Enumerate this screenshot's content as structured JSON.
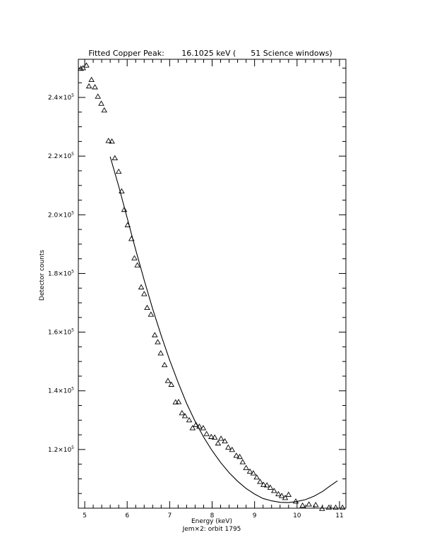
{
  "chart_data": {
    "type": "scatter",
    "title": "Fitted Copper Peak:       16.1025 keV (      51 Science windows)",
    "xlabel": "Energy (keV)",
    "ylabel": "Detector counts",
    "subtitle": "Jem×2: orbit 1795",
    "xlim": [
      4.85,
      11.15
    ],
    "ylim": [
      100000,
      253000
    ],
    "x_ticks": [
      {
        "value": 5,
        "label": "5"
      },
      {
        "value": 6,
        "label": "6"
      },
      {
        "value": 7,
        "label": "7"
      },
      {
        "value": 8,
        "label": "8"
      },
      {
        "value": 9,
        "label": "9"
      },
      {
        "value": 10,
        "label": "10"
      },
      {
        "value": 11,
        "label": "11"
      }
    ],
    "y_ticks": [
      {
        "value": 120000,
        "label": "1.2×10",
        "exp": "5"
      },
      {
        "value": 140000,
        "label": "1.4×10",
        "exp": "5"
      },
      {
        "value": 160000,
        "label": "1.6×10",
        "exp": "5"
      },
      {
        "value": 180000,
        "label": "1.8×10",
        "exp": "5"
      },
      {
        "value": 200000,
        "label": "2.0×10",
        "exp": "5"
      },
      {
        "value": 220000,
        "label": "2.2×10",
        "exp": "5"
      },
      {
        "value": 240000,
        "label": "2.4×10",
        "exp": "5"
      }
    ],
    "series": [
      {
        "marker": "triangle",
        "points": [
          [
            4.91,
            249800
          ],
          [
            4.96,
            250000
          ],
          [
            5.04,
            250900
          ],
          [
            5.1,
            243800
          ],
          [
            5.16,
            246000
          ],
          [
            5.24,
            243500
          ],
          [
            5.31,
            240300
          ],
          [
            5.39,
            237900
          ],
          [
            5.46,
            235600
          ],
          [
            5.56,
            225200
          ],
          [
            5.64,
            225000
          ],
          [
            5.71,
            219300
          ],
          [
            5.8,
            214700
          ],
          [
            5.87,
            208000
          ],
          [
            5.93,
            201700
          ],
          [
            6.01,
            196500
          ],
          [
            6.1,
            191800
          ],
          [
            6.17,
            185200
          ],
          [
            6.24,
            182800
          ],
          [
            6.33,
            175300
          ],
          [
            6.4,
            173000
          ],
          [
            6.47,
            168300
          ],
          [
            6.56,
            166000
          ],
          [
            6.65,
            159000
          ],
          [
            6.72,
            156600
          ],
          [
            6.79,
            152800
          ],
          [
            6.88,
            148800
          ],
          [
            6.96,
            143400
          ],
          [
            7.04,
            142100
          ],
          [
            7.14,
            136100
          ],
          [
            7.21,
            136200
          ],
          [
            7.29,
            132400
          ],
          [
            7.36,
            131400
          ],
          [
            7.46,
            130000
          ],
          [
            7.54,
            127300
          ],
          [
            7.62,
            128400
          ],
          [
            7.7,
            127800
          ],
          [
            7.79,
            127300
          ],
          [
            7.87,
            125300
          ],
          [
            7.98,
            124300
          ],
          [
            8.06,
            124100
          ],
          [
            8.14,
            122100
          ],
          [
            8.21,
            123700
          ],
          [
            8.3,
            122800
          ],
          [
            8.38,
            120700
          ],
          [
            8.47,
            119900
          ],
          [
            8.57,
            117900
          ],
          [
            8.65,
            117500
          ],
          [
            8.72,
            115700
          ],
          [
            8.8,
            113700
          ],
          [
            8.89,
            112500
          ],
          [
            8.97,
            111900
          ],
          [
            9.05,
            110500
          ],
          [
            9.13,
            109000
          ],
          [
            9.21,
            108000
          ],
          [
            9.29,
            107800
          ],
          [
            9.37,
            107000
          ],
          [
            9.46,
            105900
          ],
          [
            9.56,
            104800
          ],
          [
            9.64,
            104200
          ],
          [
            9.72,
            103500
          ],
          [
            9.8,
            104600
          ],
          [
            9.97,
            102300
          ],
          [
            10.13,
            100900
          ],
          [
            10.28,
            101300
          ],
          [
            10.44,
            101100
          ],
          [
            10.59,
            99800
          ],
          [
            10.75,
            100200
          ],
          [
            10.91,
            100200
          ],
          [
            11.07,
            100200
          ]
        ]
      },
      {
        "marker": "line",
        "points": [
          [
            5.6,
            219800
          ],
          [
            5.8,
            209700
          ],
          [
            6.0,
            198900
          ],
          [
            6.2,
            188100
          ],
          [
            6.4,
            177800
          ],
          [
            6.6,
            167900
          ],
          [
            6.8,
            158900
          ],
          [
            7.0,
            150500
          ],
          [
            7.2,
            142800
          ],
          [
            7.4,
            135700
          ],
          [
            7.6,
            129600
          ],
          [
            7.8,
            124200
          ],
          [
            8.0,
            119600
          ],
          [
            8.2,
            115600
          ],
          [
            8.4,
            112100
          ],
          [
            8.6,
            109200
          ],
          [
            8.8,
            106700
          ],
          [
            9.0,
            104800
          ],
          [
            9.2,
            103300
          ],
          [
            9.4,
            102500
          ],
          [
            9.6,
            102000
          ],
          [
            9.8,
            101900
          ],
          [
            10.0,
            102300
          ],
          [
            10.2,
            102900
          ],
          [
            10.4,
            104100
          ],
          [
            10.6,
            105700
          ],
          [
            10.8,
            107800
          ],
          [
            10.95,
            109300
          ]
        ]
      }
    ],
    "grid": false,
    "legend": "none"
  }
}
